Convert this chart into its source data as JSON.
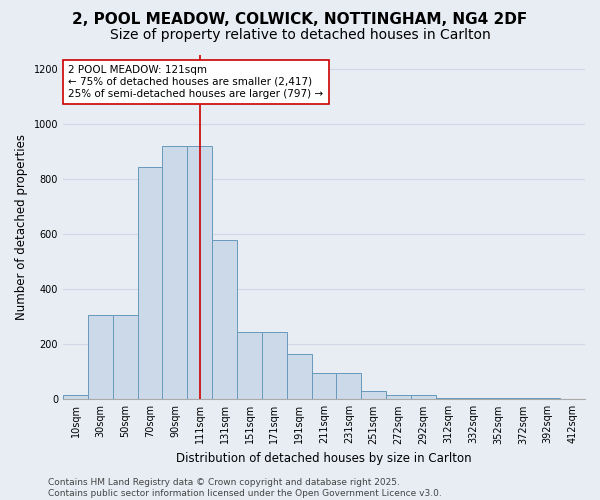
{
  "title": "2, POOL MEADOW, COLWICK, NOTTINGHAM, NG4 2DF",
  "subtitle": "Size of property relative to detached houses in Carlton",
  "xlabel": "Distribution of detached houses by size in Carlton",
  "ylabel": "Number of detached properties",
  "categories": [
    "10sqm",
    "30sqm",
    "50sqm",
    "70sqm",
    "90sqm",
    "111sqm",
    "131sqm",
    "151sqm",
    "171sqm",
    "191sqm",
    "211sqm",
    "231sqm",
    "251sqm",
    "272sqm",
    "292sqm",
    "312sqm",
    "332sqm",
    "352sqm",
    "372sqm",
    "392sqm",
    "412sqm"
  ],
  "values": [
    15,
    305,
    305,
    845,
    920,
    920,
    580,
    245,
    245,
    165,
    95,
    95,
    30,
    15,
    15,
    5,
    5,
    5,
    3,
    3,
    2
  ],
  "bar_color": "#ccd9e8",
  "bar_edge_color": "#6699bb",
  "background_color": "#e8edf4",
  "grid_color": "#d0d8e8",
  "vline_x": 5.0,
  "vline_color": "#cc0000",
  "annotation_text": "2 POOL MEADOW: 121sqm\n← 75% of detached houses are smaller (2,417)\n25% of semi-detached houses are larger (797) →",
  "annotation_box_facecolor": "#ffffff",
  "annotation_box_edgecolor": "#cc0000",
  "ylim": [
    0,
    1250
  ],
  "yticks": [
    0,
    200,
    400,
    600,
    800,
    1000,
    1200
  ],
  "footer_line1": "Contains HM Land Registry data © Crown copyright and database right 2025.",
  "footer_line2": "Contains public sector information licensed under the Open Government Licence v3.0.",
  "title_fontsize": 11,
  "subtitle_fontsize": 10,
  "axis_label_fontsize": 8.5,
  "tick_fontsize": 7,
  "annotation_fontsize": 7.5,
  "footer_fontsize": 6.5
}
